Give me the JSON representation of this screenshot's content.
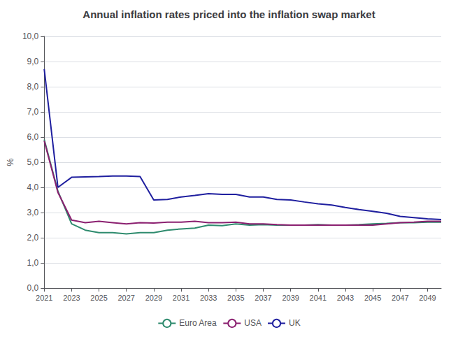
{
  "chart_data": {
    "type": "line",
    "title": "Annual inflation rates priced into the inflation swap market",
    "ylabel": "%",
    "x": [
      2021,
      2022,
      2023,
      2024,
      2025,
      2026,
      2027,
      2028,
      2029,
      2030,
      2031,
      2032,
      2033,
      2034,
      2035,
      2036,
      2037,
      2038,
      2039,
      2040,
      2041,
      2042,
      2043,
      2044,
      2045,
      2046,
      2047,
      2048,
      2049,
      2050
    ],
    "xlim": [
      2021,
      2050
    ],
    "xticks": [
      2021,
      2023,
      2025,
      2027,
      2029,
      2031,
      2033,
      2035,
      2037,
      2039,
      2041,
      2043,
      2045,
      2047,
      2049
    ],
    "ylim": [
      0,
      10.0
    ],
    "yticks": [
      {
        "value": 0.0,
        "label": "0,0"
      },
      {
        "value": 1.0,
        "label": "1,0"
      },
      {
        "value": 2.0,
        "label": "2,0"
      },
      {
        "value": 3.0,
        "label": "3,0"
      },
      {
        "value": 4.0,
        "label": "4,0"
      },
      {
        "value": 5.0,
        "label": "5,0"
      },
      {
        "value": 6.0,
        "label": "6,0"
      },
      {
        "value": 7.0,
        "label": "7,0"
      },
      {
        "value": 8.0,
        "label": "8,0"
      },
      {
        "value": 9.0,
        "label": "9,0"
      },
      {
        "value": 10.0,
        "label": "10,0"
      }
    ],
    "series": [
      {
        "name": "Euro Area",
        "color": "#2E8B6E",
        "values": [
          5.9,
          3.85,
          2.55,
          2.3,
          2.2,
          2.2,
          2.15,
          2.2,
          2.2,
          2.3,
          2.35,
          2.38,
          2.5,
          2.48,
          2.55,
          2.5,
          2.52,
          2.5,
          2.5,
          2.5,
          2.52,
          2.5,
          2.5,
          2.52,
          2.55,
          2.57,
          2.6,
          2.6,
          2.62,
          2.62
        ]
      },
      {
        "name": "USA",
        "color": "#8B2070",
        "values": [
          5.85,
          3.8,
          2.7,
          2.6,
          2.65,
          2.6,
          2.55,
          2.6,
          2.58,
          2.62,
          2.62,
          2.65,
          2.6,
          2.6,
          2.62,
          2.55,
          2.55,
          2.52,
          2.5,
          2.5,
          2.5,
          2.5,
          2.5,
          2.5,
          2.5,
          2.55,
          2.6,
          2.62,
          2.65,
          2.65
        ]
      },
      {
        "name": "UK",
        "color": "#1F1F9F",
        "values": [
          8.7,
          4.0,
          4.4,
          4.42,
          4.43,
          4.45,
          4.45,
          4.43,
          3.5,
          3.52,
          3.62,
          3.68,
          3.75,
          3.72,
          3.72,
          3.62,
          3.62,
          3.52,
          3.5,
          3.42,
          3.35,
          3.3,
          3.2,
          3.12,
          3.05,
          2.97,
          2.85,
          2.8,
          2.75,
          2.72
        ]
      }
    ],
    "grid": true,
    "legend": "bottom"
  }
}
